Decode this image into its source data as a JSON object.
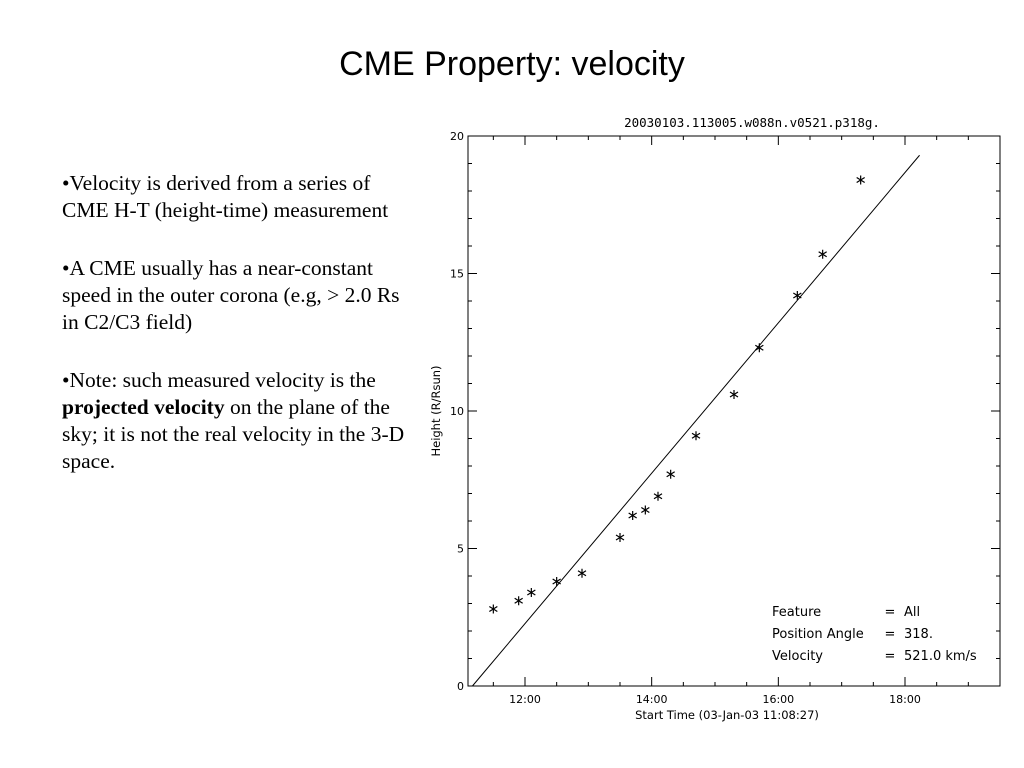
{
  "slide": {
    "title": "CME Property: velocity",
    "bullets": [
      {
        "text": "•Velocity is derived from a series of CME H-T (height-time) measurement"
      },
      {
        "text": "•A CME usually has a near-constant speed in the outer corona (e.g, > 2.0 Rs in C2/C3 field)"
      },
      {
        "before": "•Note: such measured velocity is the ",
        "bold": "projected velocity",
        "after": " on the plane of the sky; it is not the real velocity in the 3-D space."
      }
    ]
  },
  "chart_data": {
    "type": "scatter",
    "title": "20030103.113005.w088n.v0521.p318g.",
    "xlabel": "Start Time (03-Jan-03 11:08:27)",
    "ylabel": "Height (R/Rsun)",
    "x_unit": "hours",
    "xlim": [
      11.1,
      19.5
    ],
    "ylim": [
      0,
      20
    ],
    "x_ticks": [
      {
        "value": 12,
        "label": "12:00"
      },
      {
        "value": 14,
        "label": "14:00"
      },
      {
        "value": 16,
        "label": "16:00"
      },
      {
        "value": 18,
        "label": "18:00"
      }
    ],
    "y_ticks": [
      {
        "value": 0,
        "label": "0"
      },
      {
        "value": 5,
        "label": "5"
      },
      {
        "value": 10,
        "label": "10"
      },
      {
        "value": 15,
        "label": "15"
      },
      {
        "value": 20,
        "label": "20"
      }
    ],
    "marker": "*",
    "series": [
      {
        "points": [
          {
            "x": 11.5,
            "y": 2.8
          },
          {
            "x": 11.9,
            "y": 3.1
          },
          {
            "x": 12.1,
            "y": 3.4
          },
          {
            "x": 12.5,
            "y": 3.8
          },
          {
            "x": 12.9,
            "y": 4.1
          },
          {
            "x": 13.5,
            "y": 5.4
          },
          {
            "x": 13.7,
            "y": 6.2
          },
          {
            "x": 13.9,
            "y": 6.4
          },
          {
            "x": 14.1,
            "y": 6.9
          },
          {
            "x": 14.3,
            "y": 7.7
          },
          {
            "x": 14.7,
            "y": 9.1
          },
          {
            "x": 15.3,
            "y": 10.6
          },
          {
            "x": 15.7,
            "y": 12.3
          },
          {
            "x": 16.3,
            "y": 14.2
          },
          {
            "x": 16.7,
            "y": 15.7
          },
          {
            "x": 17.3,
            "y": 18.4
          }
        ]
      }
    ],
    "fit_line": {
      "x0": 11.17,
      "y0": 0.0,
      "x1": 18.23,
      "y1": 19.3
    },
    "annotations": [
      {
        "label": "Feature",
        "value": "All"
      },
      {
        "label": "Position Angle",
        "value": "318."
      },
      {
        "label": "Velocity",
        "value": "521.0 km/s"
      }
    ]
  }
}
